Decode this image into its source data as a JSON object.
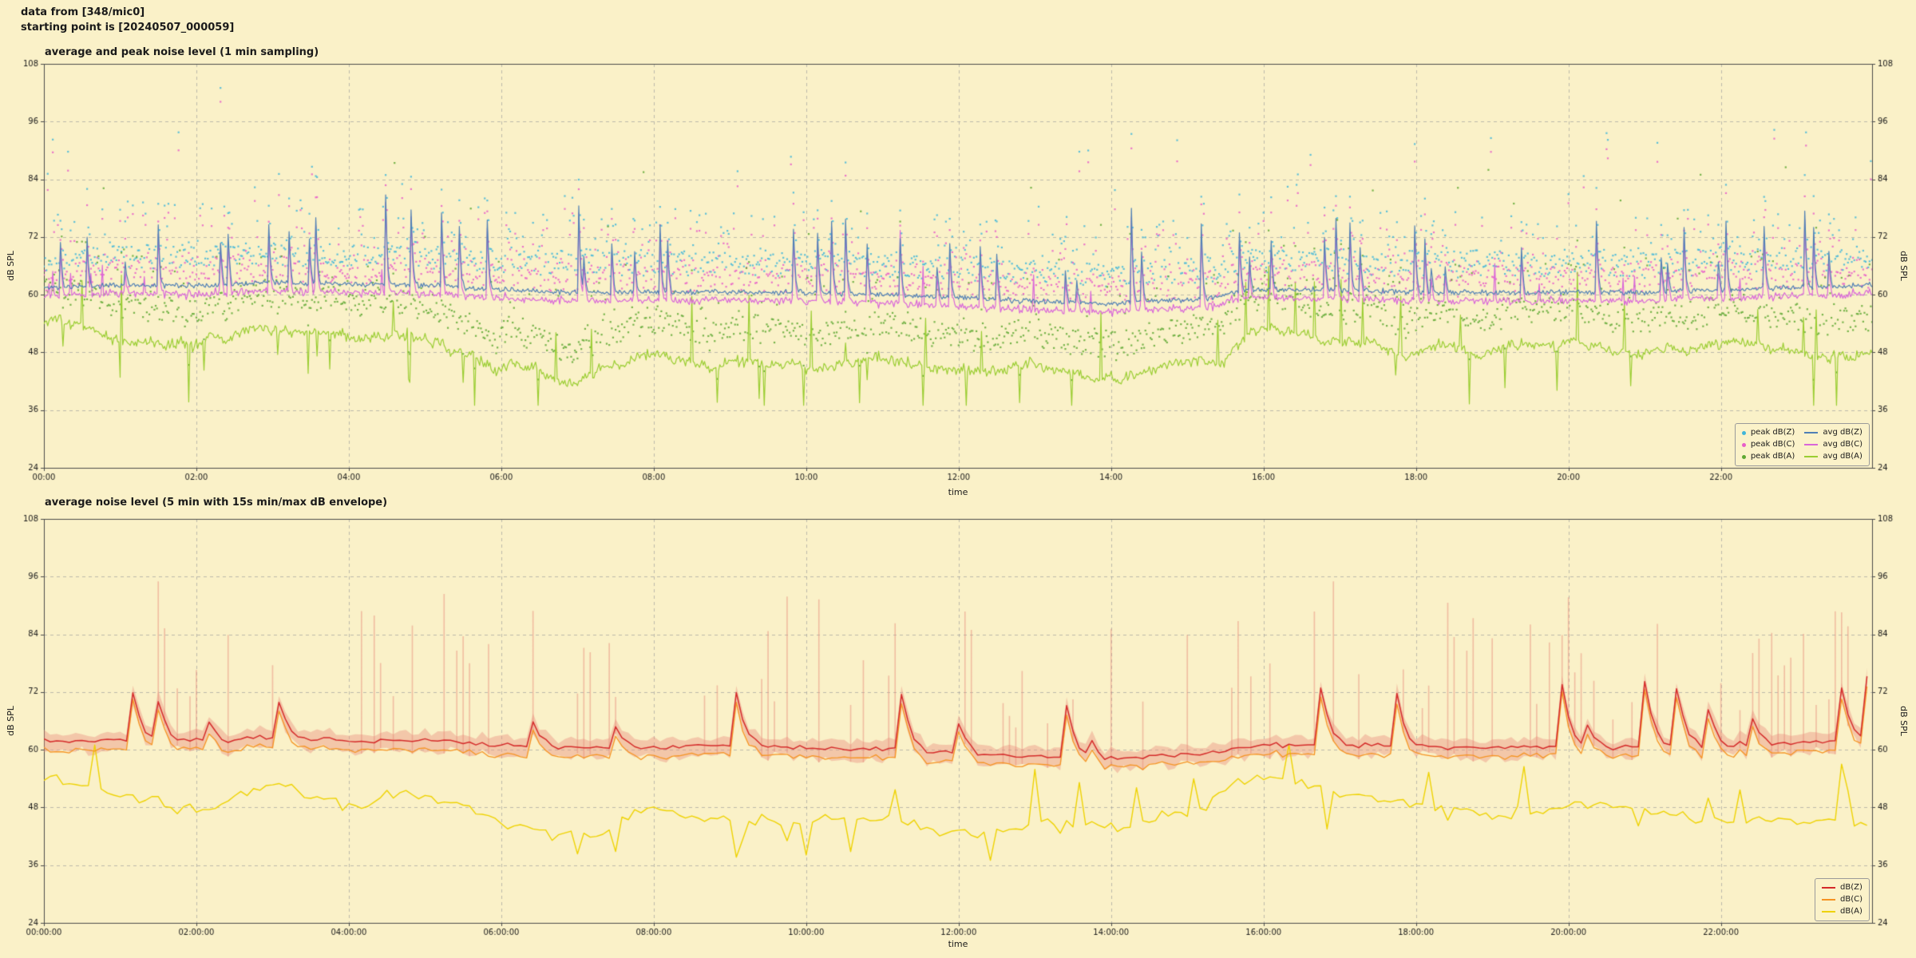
{
  "header": {
    "line1": "data from [348/mic0]",
    "line2": "starting point is [20240507_000059]"
  },
  "palette": {
    "background": "#faf1c8",
    "grid": "#9b9b9b",
    "spine": "#4a4a4a",
    "text": "#1a1a1a"
  },
  "chart_data": [
    {
      "type": "line",
      "subtype": "lines with 1-min peak scatter overlay",
      "title": "average and peak noise level (1 min sampling)",
      "xlabel": "time",
      "ylabel": "dB SPL",
      "grid": true,
      "legend_position": "lower right",
      "ylim": [
        24,
        108
      ],
      "yticks": [
        24,
        36,
        48,
        60,
        72,
        84,
        96,
        108
      ],
      "x_range_minutes": [
        0,
        1439
      ],
      "xticks_minutes": [
        0,
        120,
        240,
        360,
        480,
        600,
        720,
        840,
        960,
        1080,
        1200,
        1320
      ],
      "xtick_labels": [
        "00:00",
        "02:00",
        "04:00",
        "06:00",
        "08:00",
        "10:00",
        "12:00",
        "14:00",
        "16:00",
        "18:00",
        "20:00",
        "22:00"
      ],
      "sampling_minutes": 1,
      "scatter_series": [
        {
          "name": "peak dB(Z)",
          "color": "#41b6d9",
          "marker": "point",
          "typical_db_range": [
            62,
            97
          ]
        },
        {
          "name": "peak dB(C)",
          "color": "#e85ec9",
          "marker": "point",
          "typical_db_range": [
            60,
            95
          ]
        },
        {
          "name": "peak dB(A)",
          "color": "#5ea832",
          "marker": "point",
          "typical_db_range": [
            46,
            95
          ]
        }
      ],
      "line_series": [
        {
          "name": "avg dB(Z)",
          "color": "#4f7fb5",
          "hourly_db": [
            61.5,
            62,
            62,
            62.5,
            62.2,
            62,
            61,
            60.5,
            60.5,
            60.6,
            60.4,
            60,
            59.5,
            58.6,
            58.2,
            59,
            61,
            61,
            60.5,
            60.4,
            60.5,
            60.5,
            61,
            61.5,
            62
          ],
          "noise_db": 0.55,
          "spike_prob": 0.055,
          "spike_db": [
            4,
            16
          ]
        },
        {
          "name": "avg dB(C)",
          "color": "#d966d9",
          "derived_from": "avg dB(Z)",
          "offset_db": -1.6,
          "noise_db": 0.35
        },
        {
          "name": "avg dB(A)",
          "color": "#9acd32",
          "hourly_db": [
            54,
            51,
            50,
            52.5,
            49,
            51.5,
            46,
            44,
            48,
            47,
            46,
            47,
            46,
            45,
            43.5,
            45,
            51,
            49,
            47,
            48,
            49,
            48,
            47,
            46,
            45
          ],
          "noise_db": 1.0,
          "spike_prob": 0.02,
          "spike_db": [
            4,
            14
          ],
          "dip_prob": 0.02,
          "dip_db": [
            4,
            12
          ]
        }
      ]
    },
    {
      "type": "line",
      "subtype": "5-min averages with 15s min/max envelope",
      "title": "average noise level (5 min with 15s min/max dB envelope)",
      "xlabel": "time",
      "ylabel": "dB SPL",
      "grid": true,
      "legend_position": "lower right",
      "ylim": [
        24,
        108
      ],
      "yticks": [
        24,
        36,
        48,
        60,
        72,
        84,
        96,
        108
      ],
      "x_range_minutes": [
        0,
        1439
      ],
      "xticks_minutes": [
        0,
        120,
        240,
        360,
        480,
        600,
        720,
        840,
        960,
        1080,
        1200,
        1320
      ],
      "xtick_labels": [
        "00:00:00",
        "02:00:00",
        "04:00:00",
        "06:00:00",
        "08:00:00",
        "10:00:00",
        "12:00:00",
        "14:00:00",
        "16:00:00",
        "18:00:00",
        "20:00:00",
        "22:00:00"
      ],
      "sampling_minutes": 5,
      "line_series": [
        {
          "name": "dB(Z)",
          "color": "#d42a2a",
          "hourly_db": [
            62,
            62,
            62,
            62.5,
            62,
            62,
            61,
            60.5,
            60.5,
            61,
            60.5,
            60,
            59.5,
            58.6,
            58.2,
            59,
            61,
            61,
            60.5,
            60.5,
            60.5,
            60.5,
            61,
            61.5,
            62
          ],
          "noise_db": 0.5,
          "spike_prob": 0.07,
          "spike_db": [
            3,
            14
          ]
        },
        {
          "name": "dB(C)",
          "color": "#f59322",
          "derived_from": "dB(Z)",
          "offset_db": -1.9,
          "noise_db": 0.25
        },
        {
          "name": "dB(A)",
          "color": "#eed202",
          "hourly_db": [
            54,
            51,
            50,
            52.5,
            49,
            51.5,
            46,
            44,
            48,
            47,
            46,
            47,
            46,
            45,
            43.5,
            45,
            51,
            49,
            47,
            48,
            49,
            48,
            47,
            46,
            45
          ],
          "noise_db": 1.1,
          "spike_prob": 0.035,
          "spike_db": [
            3,
            12
          ],
          "dip_prob": 0.035,
          "dip_db": [
            3,
            10
          ]
        }
      ],
      "envelope": {
        "label": "15s min/max dB envelope",
        "around": "dB(Z)",
        "color": "#e8897a",
        "min_below_avg_db": [
          1.2,
          3.0
        ],
        "max_above_avg_db": [
          1.0,
          2.3
        ],
        "spike_max_db": 95,
        "spike_windows_hours": [
          [
            0,
            1.5,
            0.06
          ],
          [
            1.5,
            5.6,
            0.35
          ],
          [
            5.6,
            7.0,
            0.08
          ],
          [
            7.0,
            13.6,
            0.33
          ],
          [
            13.6,
            15.4,
            0.12
          ],
          [
            15.4,
            24,
            0.38
          ]
        ]
      }
    }
  ]
}
